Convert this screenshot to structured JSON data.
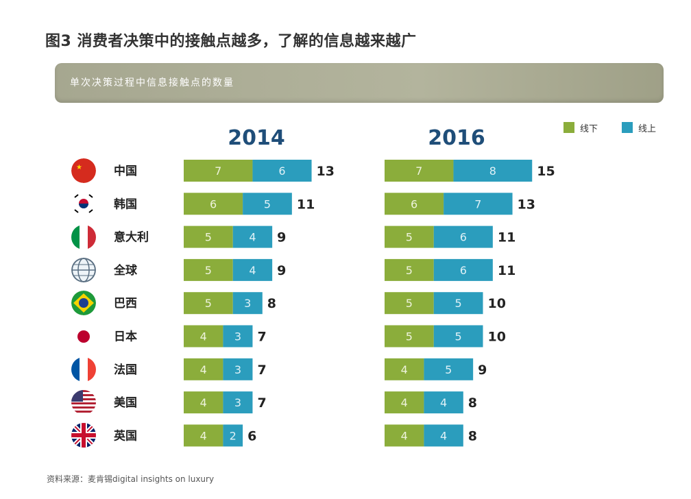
{
  "title": "图3 消费者决策中的接触点越多，了解的信息越来越广",
  "banner": "单次决策过程中信息接触点的数量",
  "source": "资料来源：麦肯锡digital insights on luxury",
  "colors": {
    "offline": "#8bad3b",
    "online": "#2b9dbd",
    "banner": "#a9aa92"
  },
  "chart_data": {
    "type": "bar",
    "orientation": "horizontal",
    "stacked": true,
    "legend": [
      "线下",
      "线上"
    ],
    "categories": [
      "中国",
      "韩国",
      "意大利",
      "全球",
      "巴西",
      "日本",
      "法国",
      "美国",
      "英国"
    ],
    "flags": [
      "china-flag-icon",
      "korea-flag-icon",
      "italy-flag-icon",
      "globe-icon",
      "brazil-flag-icon",
      "japan-flag-icon",
      "france-flag-icon",
      "usa-flag-icon",
      "uk-flag-icon"
    ],
    "panels": [
      {
        "title": "2014",
        "series": [
          {
            "name": "线下",
            "values": [
              7,
              6,
              5,
              5,
              5,
              4,
              4,
              4,
              4
            ]
          },
          {
            "name": "线上",
            "values": [
              6,
              5,
              4,
              4,
              3,
              3,
              3,
              3,
              2
            ]
          }
        ],
        "totals": [
          13,
          11,
          9,
          9,
          8,
          7,
          7,
          7,
          6
        ]
      },
      {
        "title": "2016",
        "series": [
          {
            "name": "线下",
            "values": [
              7,
              6,
              5,
              5,
              5,
              5,
              4,
              4,
              4
            ]
          },
          {
            "name": "线上",
            "values": [
              8,
              7,
              6,
              6,
              5,
              5,
              5,
              4,
              4
            ]
          }
        ],
        "totals": [
          15,
          13,
          11,
          11,
          10,
          10,
          9,
          8,
          8
        ]
      }
    ]
  }
}
